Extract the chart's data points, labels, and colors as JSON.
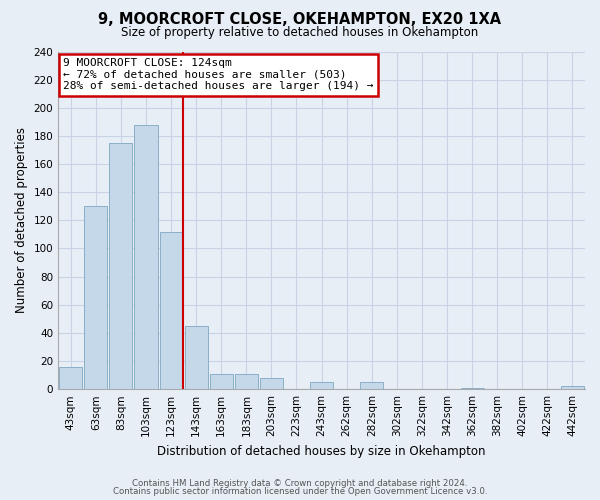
{
  "title": "9, MOORCROFT CLOSE, OKEHAMPTON, EX20 1XA",
  "subtitle": "Size of property relative to detached houses in Okehampton",
  "xlabel": "Distribution of detached houses by size in Okehampton",
  "ylabel": "Number of detached properties",
  "bar_labels": [
    "43sqm",
    "63sqm",
    "83sqm",
    "103sqm",
    "123sqm",
    "143sqm",
    "163sqm",
    "183sqm",
    "203sqm",
    "223sqm",
    "243sqm",
    "262sqm",
    "282sqm",
    "302sqm",
    "322sqm",
    "342sqm",
    "362sqm",
    "382sqm",
    "402sqm",
    "422sqm",
    "442sqm"
  ],
  "bar_values": [
    16,
    130,
    175,
    188,
    112,
    45,
    11,
    11,
    8,
    0,
    5,
    0,
    5,
    0,
    0,
    0,
    1,
    0,
    0,
    0,
    2
  ],
  "bar_color": "#c5d8ea",
  "bar_edge_color": "#8bafc8",
  "highlight_line_color": "#cc0000",
  "annotation_title": "9 MOORCROFT CLOSE: 124sqm",
  "annotation_line1": "← 72% of detached houses are smaller (503)",
  "annotation_line2": "28% of semi-detached houses are larger (194) →",
  "annotation_box_color": "white",
  "annotation_box_edge": "#cc0000",
  "ylim": [
    0,
    240
  ],
  "yticks": [
    0,
    20,
    40,
    60,
    80,
    100,
    120,
    140,
    160,
    180,
    200,
    220,
    240
  ],
  "grid_color": "#c8d4e4",
  "footer1": "Contains HM Land Registry data © Crown copyright and database right 2024.",
  "footer2": "Contains public sector information licensed under the Open Government Licence v3.0.",
  "bg_color": "#e8eef6"
}
